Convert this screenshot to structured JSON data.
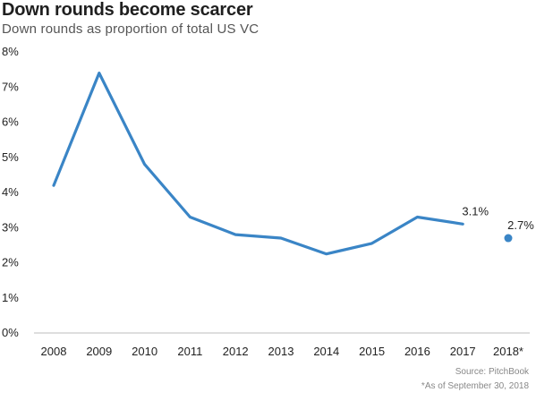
{
  "chart_data": {
    "type": "line",
    "title": "Down rounds become scarcer",
    "subtitle": "Down rounds as proportion of total US VC",
    "categories": [
      "2008",
      "2009",
      "2010",
      "2011",
      "2012",
      "2013",
      "2014",
      "2015",
      "2016",
      "2017",
      "2018*"
    ],
    "series": [
      {
        "name": "",
        "values": [
          4.2,
          7.4,
          4.8,
          3.3,
          2.8,
          2.7,
          2.25,
          2.55,
          3.3,
          3.1,
          null
        ]
      },
      {
        "name": "",
        "values": [
          null,
          null,
          null,
          null,
          null,
          null,
          null,
          null,
          null,
          null,
          2.7
        ],
        "style": "point"
      }
    ],
    "data_labels": [
      {
        "category": "2017",
        "text": "3.1%"
      },
      {
        "category": "2018*",
        "text": "2.7%"
      }
    ],
    "y_ticks": [
      "0%",
      "1%",
      "2%",
      "3%",
      "4%",
      "5%",
      "6%",
      "7%",
      "8%"
    ],
    "ylim": [
      0,
      8
    ],
    "xlabel": "",
    "ylabel": "",
    "grid": false,
    "color": "#3a85c6",
    "source": "Source: PitchBook",
    "note": "*As of September 30, 2018"
  }
}
